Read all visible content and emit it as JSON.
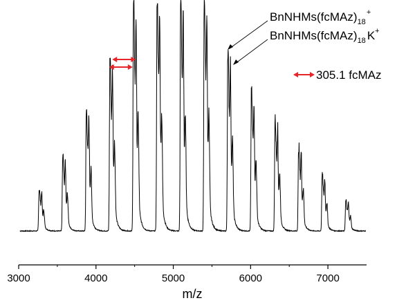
{
  "chart_data": {
    "type": "line",
    "title": "",
    "xlabel": "m/z",
    "ylabel": "",
    "xlim": [
      3000,
      7500
    ],
    "xticks": [
      3000,
      4000,
      5000,
      6000,
      7000
    ],
    "xtick_labels": [
      "3000",
      "4000",
      "5000",
      "6000",
      "7000"
    ],
    "grid": false,
    "baseline": 3,
    "peak_spacing": 305.1,
    "series": [
      {
        "peaks_mz": [
          3270,
          3576,
          3881,
          4186,
          4491,
          4796,
          5101,
          5406,
          5711,
          6016,
          6322,
          6627,
          6932,
          7237
        ],
        "intensity": [
          18,
          32,
          52,
          75,
          98,
          100,
          100,
          100,
          78,
          60,
          48,
          36,
          24,
          13
        ]
      }
    ],
    "annotations": [
      {
        "main": "BnNHMs(fcMAz)",
        "sub": "18",
        "sup": "+",
        "suffix": "",
        "peak_mz": 5711
      },
      {
        "main": "BnNHMs(fcMAz)",
        "sub": "18",
        "sup": "+",
        "suffix": "K",
        "peak_mz": 5745
      }
    ],
    "legend": {
      "label": "305.1 fcMAz",
      "position": "top-right",
      "color": "#e8262a"
    }
  },
  "colors": {
    "line": "#000000",
    "arrow": "#e8262a"
  }
}
